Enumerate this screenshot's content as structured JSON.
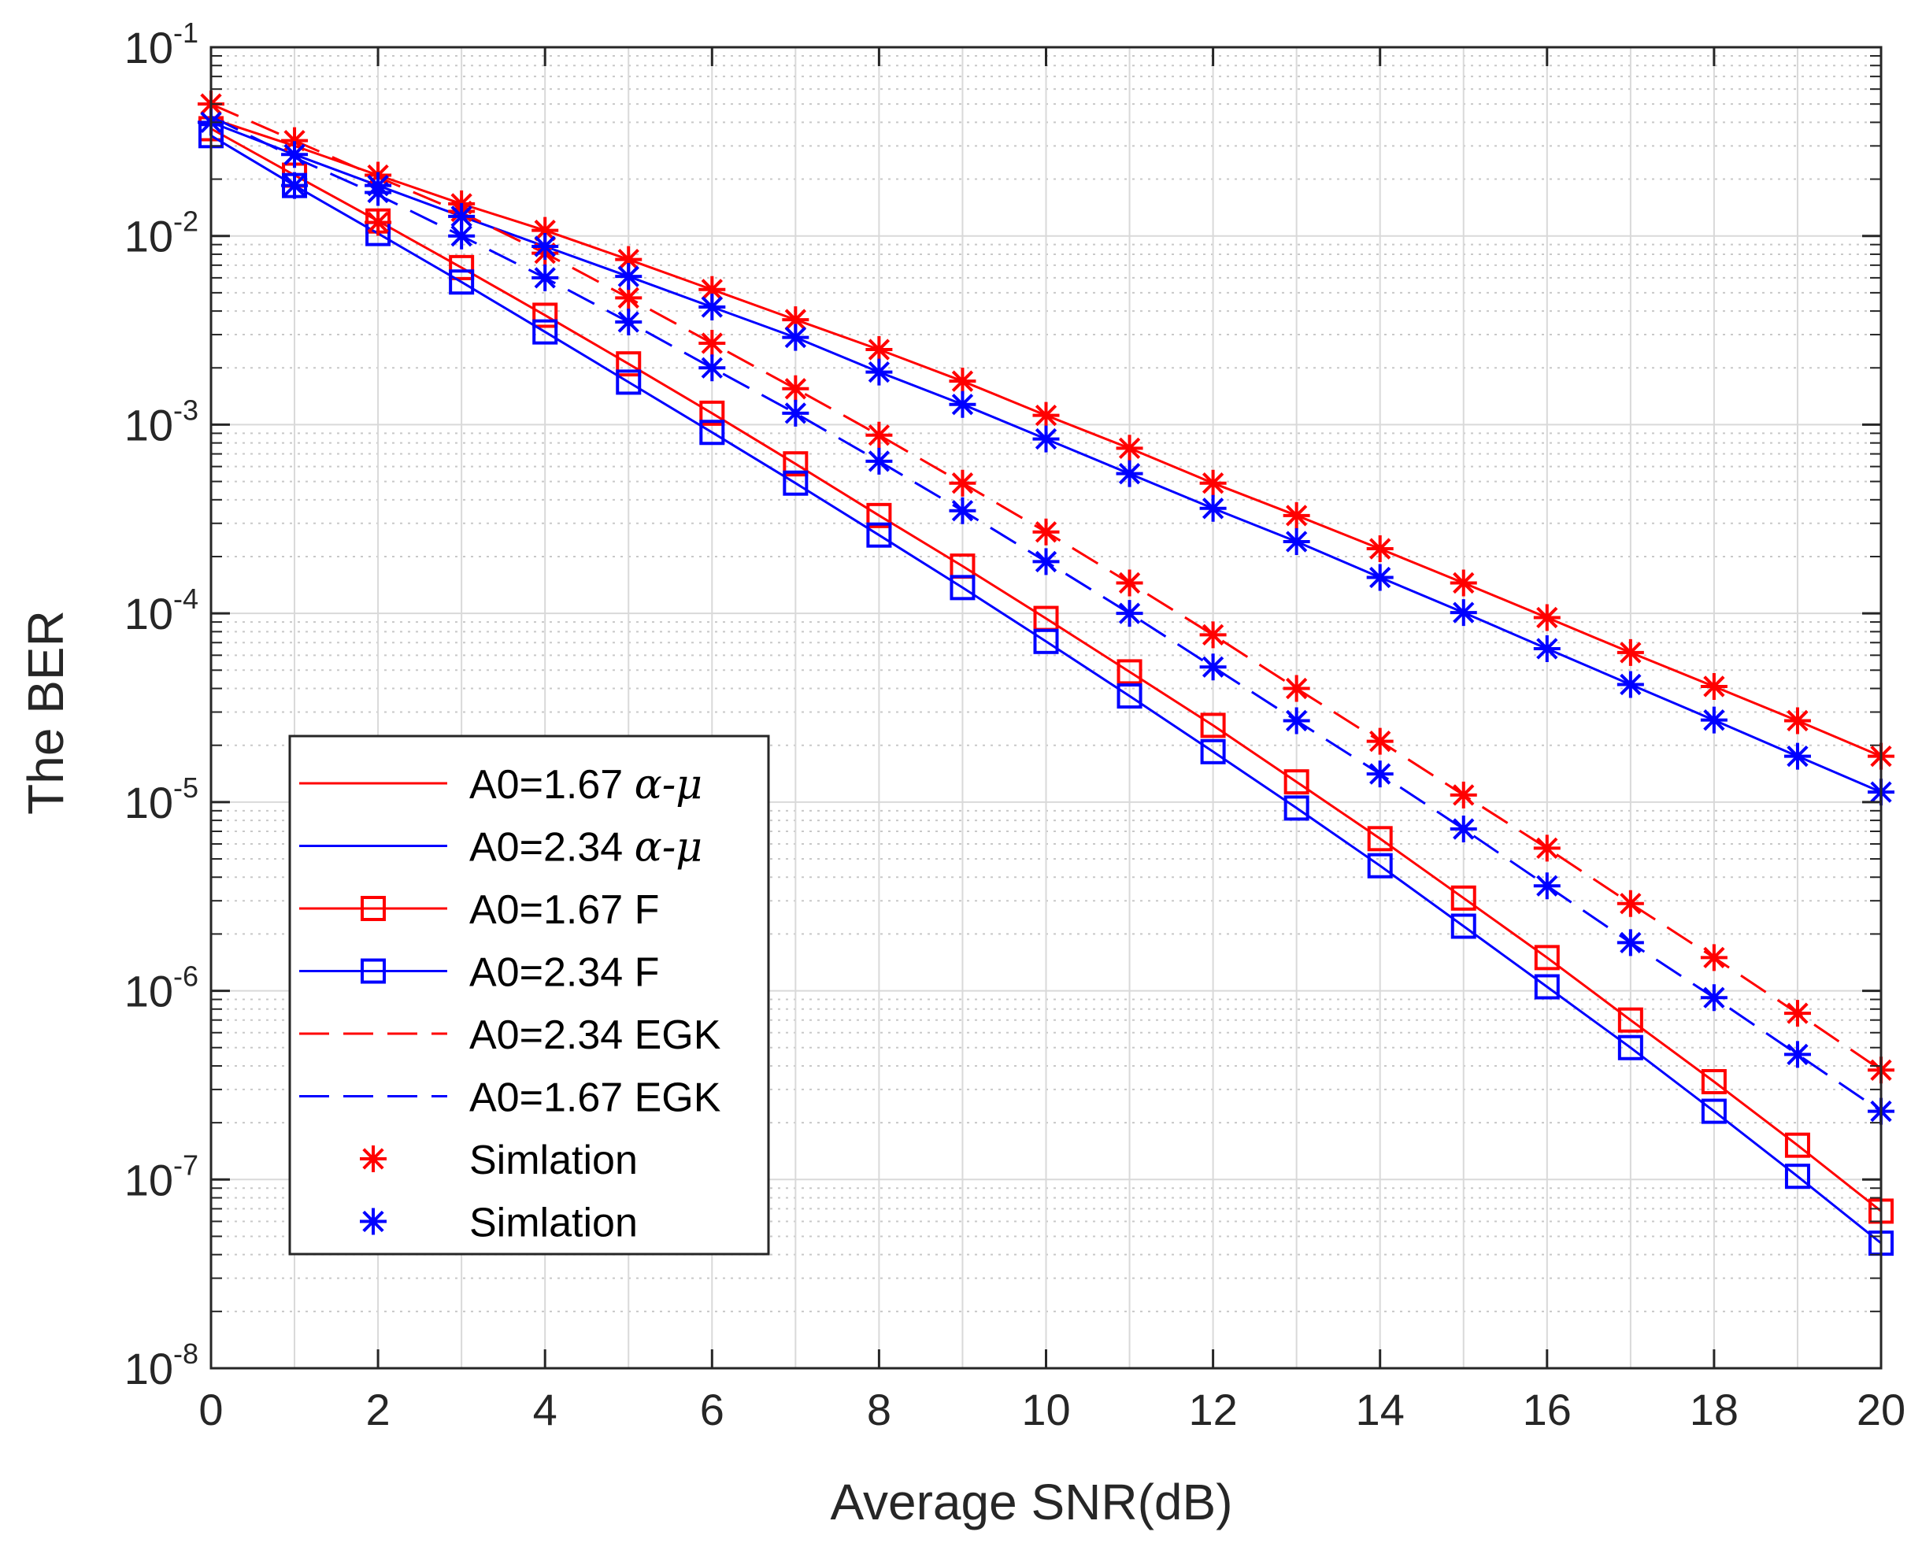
{
  "chart_data": {
    "type": "line",
    "title": "",
    "xlabel": "Average SNR(dB)",
    "ylabel": "The BER",
    "xlim": [
      0,
      20
    ],
    "ylim": [
      1e-08,
      0.1
    ],
    "yscale": "log",
    "grid": true,
    "legend_position": "lower-left",
    "x_ticks": [
      "0",
      "2",
      "4",
      "6",
      "8",
      "10",
      "12",
      "14",
      "16",
      "18",
      "20"
    ],
    "y_ticks": [
      {
        "base": "10",
        "exp": "-1"
      },
      {
        "base": "10",
        "exp": "-2"
      },
      {
        "base": "10",
        "exp": "-3"
      },
      {
        "base": "10",
        "exp": "-4"
      },
      {
        "base": "10",
        "exp": "-5"
      },
      {
        "base": "10",
        "exp": "-6"
      },
      {
        "base": "10",
        "exp": "-7"
      },
      {
        "base": "10",
        "exp": "-8"
      }
    ],
    "x": [
      0,
      1,
      2,
      3,
      4,
      5,
      6,
      7,
      8,
      9,
      10,
      11,
      12,
      13,
      14,
      15,
      16,
      17,
      18,
      19,
      20
    ],
    "series": [
      {
        "name": "A0=1.67 α-μ",
        "legend_prefix": "A0=1.67 ",
        "legend_math": "α-μ",
        "color": "#ff0000",
        "line": "solid",
        "marker": "none",
        "values": [
          0.042,
          0.03,
          0.021,
          0.0148,
          0.0107,
          0.0075,
          0.0052,
          0.0036,
          0.0025,
          0.0017,
          0.00112,
          0.00075,
          0.00049,
          0.00033,
          0.00022,
          0.000145,
          9.5e-05,
          6.2e-05,
          4.1e-05,
          2.7e-05,
          1.75e-05
        ]
      },
      {
        "name": "A0=2.34 α-μ",
        "legend_prefix": "A0=2.34 ",
        "legend_math": "α-μ",
        "color": "#0000ff",
        "line": "solid",
        "marker": "none",
        "values": [
          0.04,
          0.027,
          0.0185,
          0.0127,
          0.0088,
          0.0061,
          0.0042,
          0.0029,
          0.0019,
          0.00128,
          0.00084,
          0.00055,
          0.00036,
          0.00024,
          0.000155,
          0.000101,
          6.5e-05,
          4.2e-05,
          2.72e-05,
          1.75e-05,
          1.13e-05
        ]
      },
      {
        "name": "A0=1.67 F",
        "color": "#ff0000",
        "line": "solid",
        "marker": "square",
        "values": [
          0.037,
          0.021,
          0.012,
          0.0068,
          0.0038,
          0.0021,
          0.00115,
          0.00062,
          0.00033,
          0.000178,
          9.4e-05,
          4.9e-05,
          2.55e-05,
          1.28e-05,
          6.4e-06,
          3.1e-06,
          1.5e-06,
          7e-07,
          3.3e-07,
          1.52e-07,
          6.8e-08
        ]
      },
      {
        "name": "A0=2.34 F",
        "color": "#0000ff",
        "line": "solid",
        "marker": "square",
        "values": [
          0.034,
          0.0185,
          0.0103,
          0.0057,
          0.0031,
          0.00168,
          0.00091,
          0.00049,
          0.00026,
          0.000137,
          7.1e-05,
          3.65e-05,
          1.85e-05,
          9.3e-06,
          4.6e-06,
          2.2e-06,
          1.05e-06,
          5e-07,
          2.3e-07,
          1.04e-07,
          4.6e-08
        ]
      },
      {
        "name": "A0=2.34 EGK",
        "color": "#ff0000",
        "line": "dashed",
        "marker": "none",
        "values": [
          0.05,
          0.032,
          0.0205,
          0.0133,
          0.0081,
          0.0047,
          0.0027,
          0.00155,
          0.00088,
          0.00049,
          0.00027,
          0.000145,
          7.7e-05,
          4e-05,
          2.1e-05,
          1.09e-05,
          5.7e-06,
          2.9e-06,
          1.5e-06,
          7.6e-07,
          3.8e-07
        ]
      },
      {
        "name": "A0=1.67 EGK",
        "color": "#0000ff",
        "line": "dashed",
        "marker": "none",
        "values": [
          0.043,
          0.026,
          0.0165,
          0.01,
          0.006,
          0.0035,
          0.002,
          0.00115,
          0.00064,
          0.00035,
          0.000188,
          0.0001,
          5.2e-05,
          2.7e-05,
          1.41e-05,
          7.2e-06,
          3.6e-06,
          1.8e-06,
          9.2e-07,
          4.6e-07,
          2.3e-07
        ]
      },
      {
        "name": "Simlation",
        "color": "#ff0000",
        "line": "none",
        "marker": "star",
        "values": [
          0.05,
          0.032,
          0.021,
          0.0148,
          0.0107,
          0.0075,
          0.0052,
          0.0036,
          0.0025,
          0.0017,
          0.00112,
          0.00075,
          0.00049,
          0.00033,
          0.00022,
          0.000145,
          9.5e-05,
          6.2e-05,
          4.1e-05,
          2.7e-05,
          1.75e-05
        ],
        "extra_values": [
          null,
          null,
          0.0118,
          0.0135,
          0.0081,
          0.0047,
          0.0027,
          0.00155,
          0.00088,
          0.00049,
          0.00027,
          0.000145,
          7.7e-05,
          4e-05,
          2.1e-05,
          1.09e-05,
          5.7e-06,
          2.9e-06,
          1.5e-06,
          7.6e-07,
          3.8e-07
        ]
      },
      {
        "name": "Simlation",
        "color": "#0000ff",
        "line": "none",
        "marker": "star",
        "values": [
          0.04,
          0.027,
          0.0185,
          0.0127,
          0.0088,
          0.0061,
          0.0042,
          0.0029,
          0.0019,
          0.00128,
          0.00084,
          0.00055,
          0.00036,
          0.00024,
          0.000155,
          0.000101,
          6.5e-05,
          4.2e-05,
          2.72e-05,
          1.75e-05,
          1.13e-05
        ],
        "extra_values": [
          null,
          0.0185,
          0.017,
          0.01,
          0.006,
          0.0035,
          0.002,
          0.00115,
          0.00064,
          0.00035,
          0.000188,
          0.0001,
          5.2e-05,
          2.7e-05,
          1.41e-05,
          7.2e-06,
          3.6e-06,
          1.8e-06,
          9.2e-07,
          4.6e-07,
          2.3e-07
        ]
      }
    ]
  }
}
